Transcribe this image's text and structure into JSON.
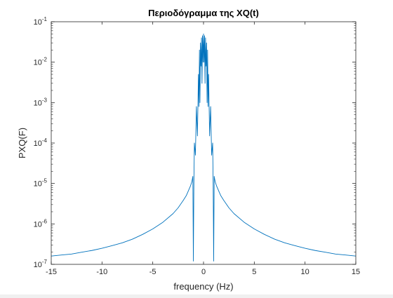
{
  "chart_data": {
    "type": "line",
    "title": "Περιοδόγραμμα της XQ(t)",
    "xlabel": "frequency (Hz)",
    "ylabel": "PXQ(F)",
    "xlim": [
      -15,
      15
    ],
    "ylim": [
      1e-07,
      0.1
    ],
    "yscale": "log",
    "grid": false,
    "legend": "none",
    "line_color": "#0072BD",
    "x_ticks": [
      -15,
      -10,
      -5,
      0,
      5,
      10,
      15
    ],
    "x_tick_labels": [
      "-15",
      "-10",
      "-5",
      "0",
      "5",
      "10",
      "15"
    ],
    "y_ticks": [
      {
        "value": 1e-07,
        "base": "10",
        "exp": "-7"
      },
      {
        "value": 1e-06,
        "base": "10",
        "exp": "-6"
      },
      {
        "value": 1e-05,
        "base": "10",
        "exp": "-5"
      },
      {
        "value": 0.0001,
        "base": "10",
        "exp": "-4"
      },
      {
        "value": 0.001,
        "base": "10",
        "exp": "-3"
      },
      {
        "value": 0.01,
        "base": "10",
        "exp": "-2"
      },
      {
        "value": 0.1,
        "base": "10",
        "exp": "-1"
      }
    ],
    "series": [
      {
        "x": [
          -15,
          -14,
          -13,
          -12,
          -11,
          -10,
          -9,
          -8,
          -7,
          -6,
          -5,
          -4,
          -3,
          -2.5,
          -2,
          -1.7,
          -1.5,
          -1.3,
          -1.15,
          -1.05,
          -1,
          -0.95,
          -0.9,
          -0.8,
          -0.7,
          -0.6,
          -0.5,
          -0.45,
          -0.4,
          -0.35,
          -0.3,
          -0.25,
          -0.2,
          -0.15,
          -0.1,
          -0.05,
          0,
          0.05,
          0.1,
          0.15,
          0.2,
          0.25,
          0.3,
          0.35,
          0.4,
          0.45,
          0.5,
          0.6,
          0.7,
          0.8,
          0.9,
          0.95,
          1,
          1.05,
          1.15,
          1.3,
          1.5,
          1.7,
          2,
          2.5,
          3,
          4,
          5,
          6,
          7,
          8,
          9,
          10,
          11,
          12,
          13,
          14,
          15
        ],
        "y": [
          1.6e-07,
          1.7e-07,
          1.8e-07,
          2e-07,
          2.2e-07,
          2.5e-07,
          2.9e-07,
          3.4e-07,
          4.2e-07,
          5.5e-07,
          7.5e-07,
          1.1e-06,
          1.8e-06,
          2.5e-06,
          3.8e-06,
          5e-06,
          6.5e-06,
          8.5e-06,
          1.1e-05,
          1.5e-05,
          1.2e-07,
          1e-05,
          0.0001,
          5e-05,
          0.0008,
          0.00015,
          0.005,
          0.0008,
          0.02,
          0.001,
          0.03,
          0.008,
          0.04,
          0.003,
          0.045,
          0.01,
          0.05,
          0.01,
          0.045,
          0.003,
          0.04,
          0.008,
          0.03,
          0.001,
          0.02,
          0.0008,
          0.005,
          0.00015,
          0.0008,
          5e-05,
          0.0001,
          1e-05,
          1.2e-07,
          1.5e-05,
          1.1e-05,
          8.5e-06,
          6.5e-06,
          5e-06,
          3.8e-06,
          2.5e-06,
          1.8e-06,
          1.1e-06,
          7.5e-07,
          5.5e-07,
          4.2e-07,
          3.4e-07,
          2.9e-07,
          2.5e-07,
          2.2e-07,
          2e-07,
          1.8e-07,
          1.7e-07,
          1.6e-07
        ]
      }
    ]
  }
}
